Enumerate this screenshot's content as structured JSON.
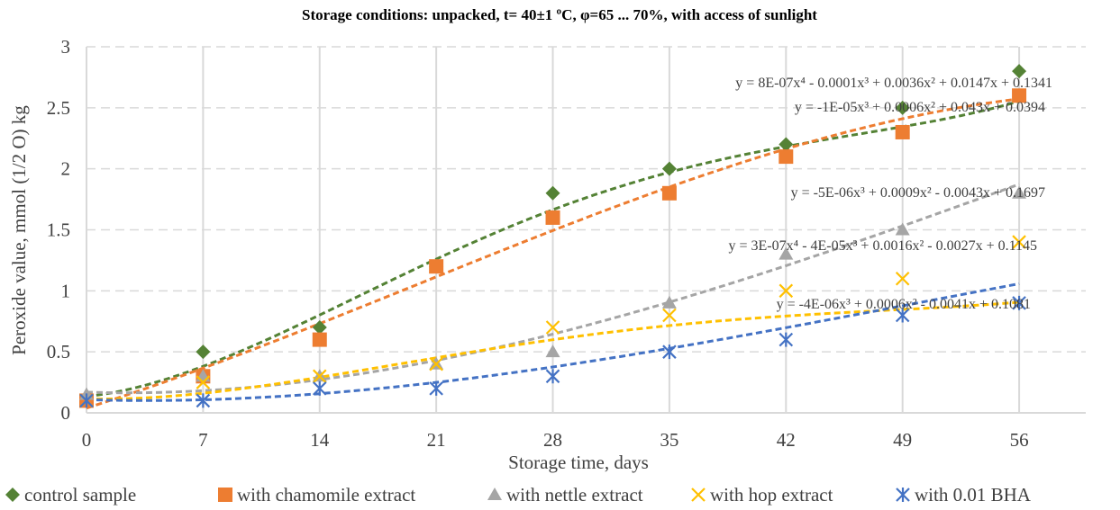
{
  "chart_data": {
    "type": "scatter",
    "title": "Storage conditions: unpacked, t= 40±1 ºC, φ=65 ... 70%, with access of sunlight",
    "xlabel": "Storage time, days",
    "ylabel": "Peroxide value, mmol (1/2 O) kg",
    "x_ticks": [
      "0",
      "7",
      "14",
      "21",
      "28",
      "35",
      "42",
      "49",
      "56"
    ],
    "y_ticks": [
      "0",
      "0.5",
      "1",
      "1.5",
      "2",
      "2.5",
      "3"
    ],
    "xlim": [
      0,
      60
    ],
    "ylim": [
      0,
      3
    ],
    "grid": "vertical solid, horizontal dashed",
    "legend_position": "bottom",
    "x": [
      0,
      7,
      14,
      21,
      28,
      35,
      42,
      49,
      56
    ],
    "series": [
      {
        "name": "control sample",
        "color": "#548235",
        "marker": "diamond",
        "values": [
          0.1,
          0.5,
          0.7,
          1.2,
          1.8,
          2.0,
          2.2,
          2.5,
          2.8
        ],
        "trendline": "y = 8E-07x⁴ - 0.0001x³ + 0.0036x² + 0.0147x + 0.1341",
        "coefficients": [
          0.1341,
          0.0147,
          0.0036,
          -0.0001,
          8e-07
        ]
      },
      {
        "name": "with chamomile extract",
        "color": "#ED7D31",
        "marker": "square",
        "values": [
          0.1,
          0.3,
          0.6,
          1.2,
          1.6,
          1.8,
          2.1,
          2.3,
          2.6
        ],
        "trendline": "y = -1E-05x³ + 0.0006x² + 0.043x + 0.0394",
        "coefficients": [
          0.0394,
          0.043,
          0.0006,
          -1e-05
        ]
      },
      {
        "name": "with nettle extract",
        "color": "#A5A5A5",
        "marker": "triangle",
        "values": [
          0.15,
          0.3,
          0.3,
          0.4,
          0.5,
          0.9,
          1.3,
          1.5,
          1.8
        ],
        "trendline": "y = -5E-06x³ + 0.0009x² - 0.0043x + 0.1697",
        "coefficients": [
          0.1697,
          -0.0043,
          0.0009,
          -5e-06
        ]
      },
      {
        "name": "with hop extract",
        "color": "#FFC000",
        "marker": "x",
        "values": [
          0.1,
          0.25,
          0.3,
          0.4,
          0.7,
          0.8,
          1.0,
          1.1,
          1.4
        ],
        "trendline": "y = 3E-07x⁴ - 4E-05x³ + 0.0016x² - 0.0027x + 0.1145",
        "coefficients": [
          0.1145,
          -0.0027,
          0.0016,
          -4e-05,
          3e-07
        ]
      },
      {
        "name": "with 0.01 BHA",
        "color": "#4472C4",
        "marker": "star",
        "values": [
          0.1,
          0.1,
          0.2,
          0.2,
          0.3,
          0.5,
          0.6,
          0.8,
          0.9
        ],
        "trendline": "y = -4E-06x³ + 0.0006x² - 0.0041x + 0.1081",
        "coefficients": [
          0.1081,
          -0.0041,
          0.0006,
          -4e-06
        ]
      }
    ]
  }
}
